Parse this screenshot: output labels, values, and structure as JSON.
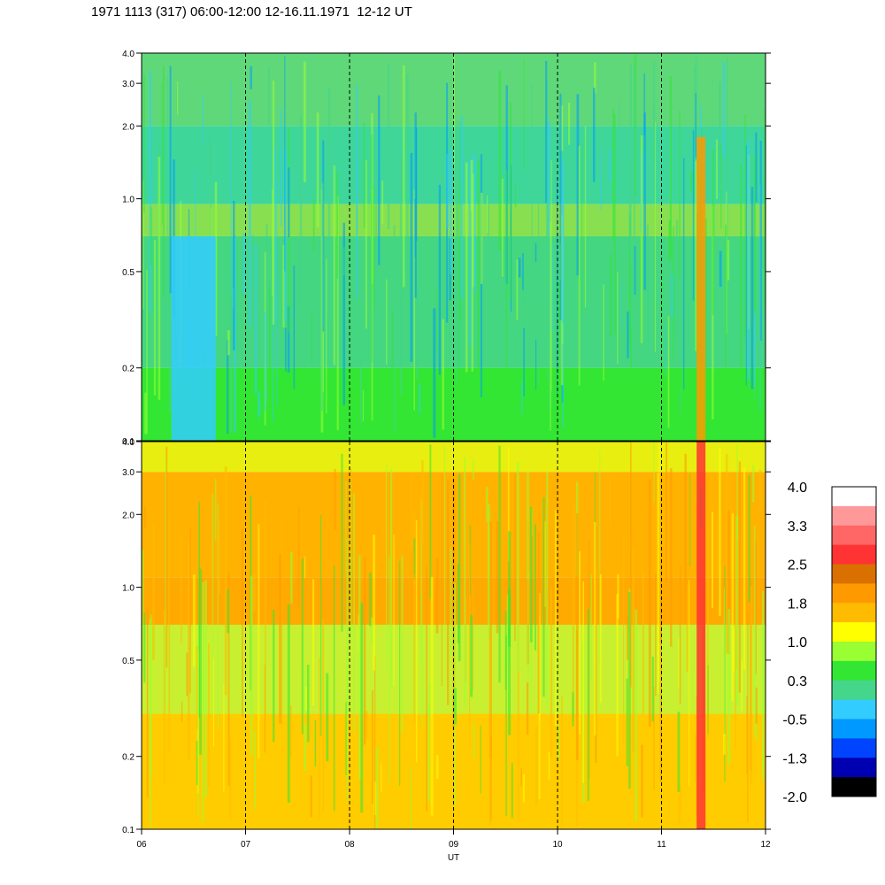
{
  "title": "1971 1113 (317) 06:00-12:00 12-16.11.1971  12-12 UT",
  "chart_data": {
    "type": "heatmap",
    "title": "1971 1113 (317) 06:00-12:00 12-16.11.1971  12-12 UT",
    "xlabel": "UT",
    "x_ticks": [
      "06",
      "07",
      "08",
      "09",
      "10",
      "11",
      "12"
    ],
    "x_range": [
      6,
      12
    ],
    "x_gridlines": [
      7,
      8,
      9,
      10,
      11
    ],
    "y_scale": "log",
    "y_range": [
      0.1,
      4.0
    ],
    "y_ticks": [
      {
        "value": 0.1,
        "label": "0.1"
      },
      {
        "value": 0.2,
        "label": "0.2"
      },
      {
        "value": 0.5,
        "label": "0.5"
      },
      {
        "value": 1.0,
        "label": "1.0"
      },
      {
        "value": 2.0,
        "label": "2.0"
      },
      {
        "value": 3.0,
        "label": "3.0"
      },
      {
        "value": 4.0,
        "label": "4.0"
      }
    ],
    "panels": [
      {
        "id": "upper",
        "dominant_levels": [
          "0.3",
          "-0.5",
          "1.0"
        ],
        "bands": [
          {
            "y_from": 0.1,
            "y_to": 0.2,
            "base_color": "#33e633"
          },
          {
            "y_from": 0.2,
            "y_to": 0.7,
            "base_color": "#44d680"
          },
          {
            "y_from": 0.7,
            "y_to": 0.95,
            "base_color": "#88e050"
          },
          {
            "y_from": 0.95,
            "y_to": 2.0,
            "base_color": "#3fd69a"
          },
          {
            "y_from": 2.0,
            "y_to": 4.0,
            "base_color": "#5fd87a"
          }
        ],
        "features": [
          {
            "x": 6.5,
            "y_from": 0.1,
            "y_to": 0.7,
            "color": "#33ccff",
            "note": "low-frequency blue patch"
          },
          {
            "x": 11.38,
            "y_from": 0.1,
            "y_to": 1.8,
            "color": "#ff9900",
            "note": "vertical orange streak"
          }
        ]
      },
      {
        "id": "lower",
        "dominant_levels": [
          "1.8",
          "1.0",
          "1.4"
        ],
        "bands": [
          {
            "y_from": 0.1,
            "y_to": 0.3,
            "base_color": "#ffcc00"
          },
          {
            "y_from": 0.3,
            "y_to": 0.7,
            "base_color": "#c8f030"
          },
          {
            "y_from": 0.7,
            "y_to": 1.1,
            "base_color": "#ffaa00"
          },
          {
            "y_from": 1.1,
            "y_to": 3.0,
            "base_color": "#ffb300"
          },
          {
            "y_from": 3.0,
            "y_to": 4.0,
            "base_color": "#e8ee10"
          }
        ],
        "features": [
          {
            "x": 11.38,
            "y_from": 0.1,
            "y_to": 4.0,
            "color": "#ff3333",
            "note": "vertical red streak"
          }
        ]
      }
    ],
    "colorbar": {
      "levels": [
        "4.0",
        "3.3",
        "2.5",
        "1.8",
        "1.0",
        "0.3",
        "-0.5",
        "-1.3",
        "-2.0"
      ],
      "colors_top_to_bottom": [
        "#ffffff",
        "#ff9999",
        "#ff6666",
        "#ff3333",
        "#d97000",
        "#ff9900",
        "#ffbb00",
        "#ffff00",
        "#99ff33",
        "#33e633",
        "#44d68a",
        "#33ccff",
        "#0099ff",
        "#0044ff",
        "#0000b3",
        "#000000"
      ]
    }
  }
}
